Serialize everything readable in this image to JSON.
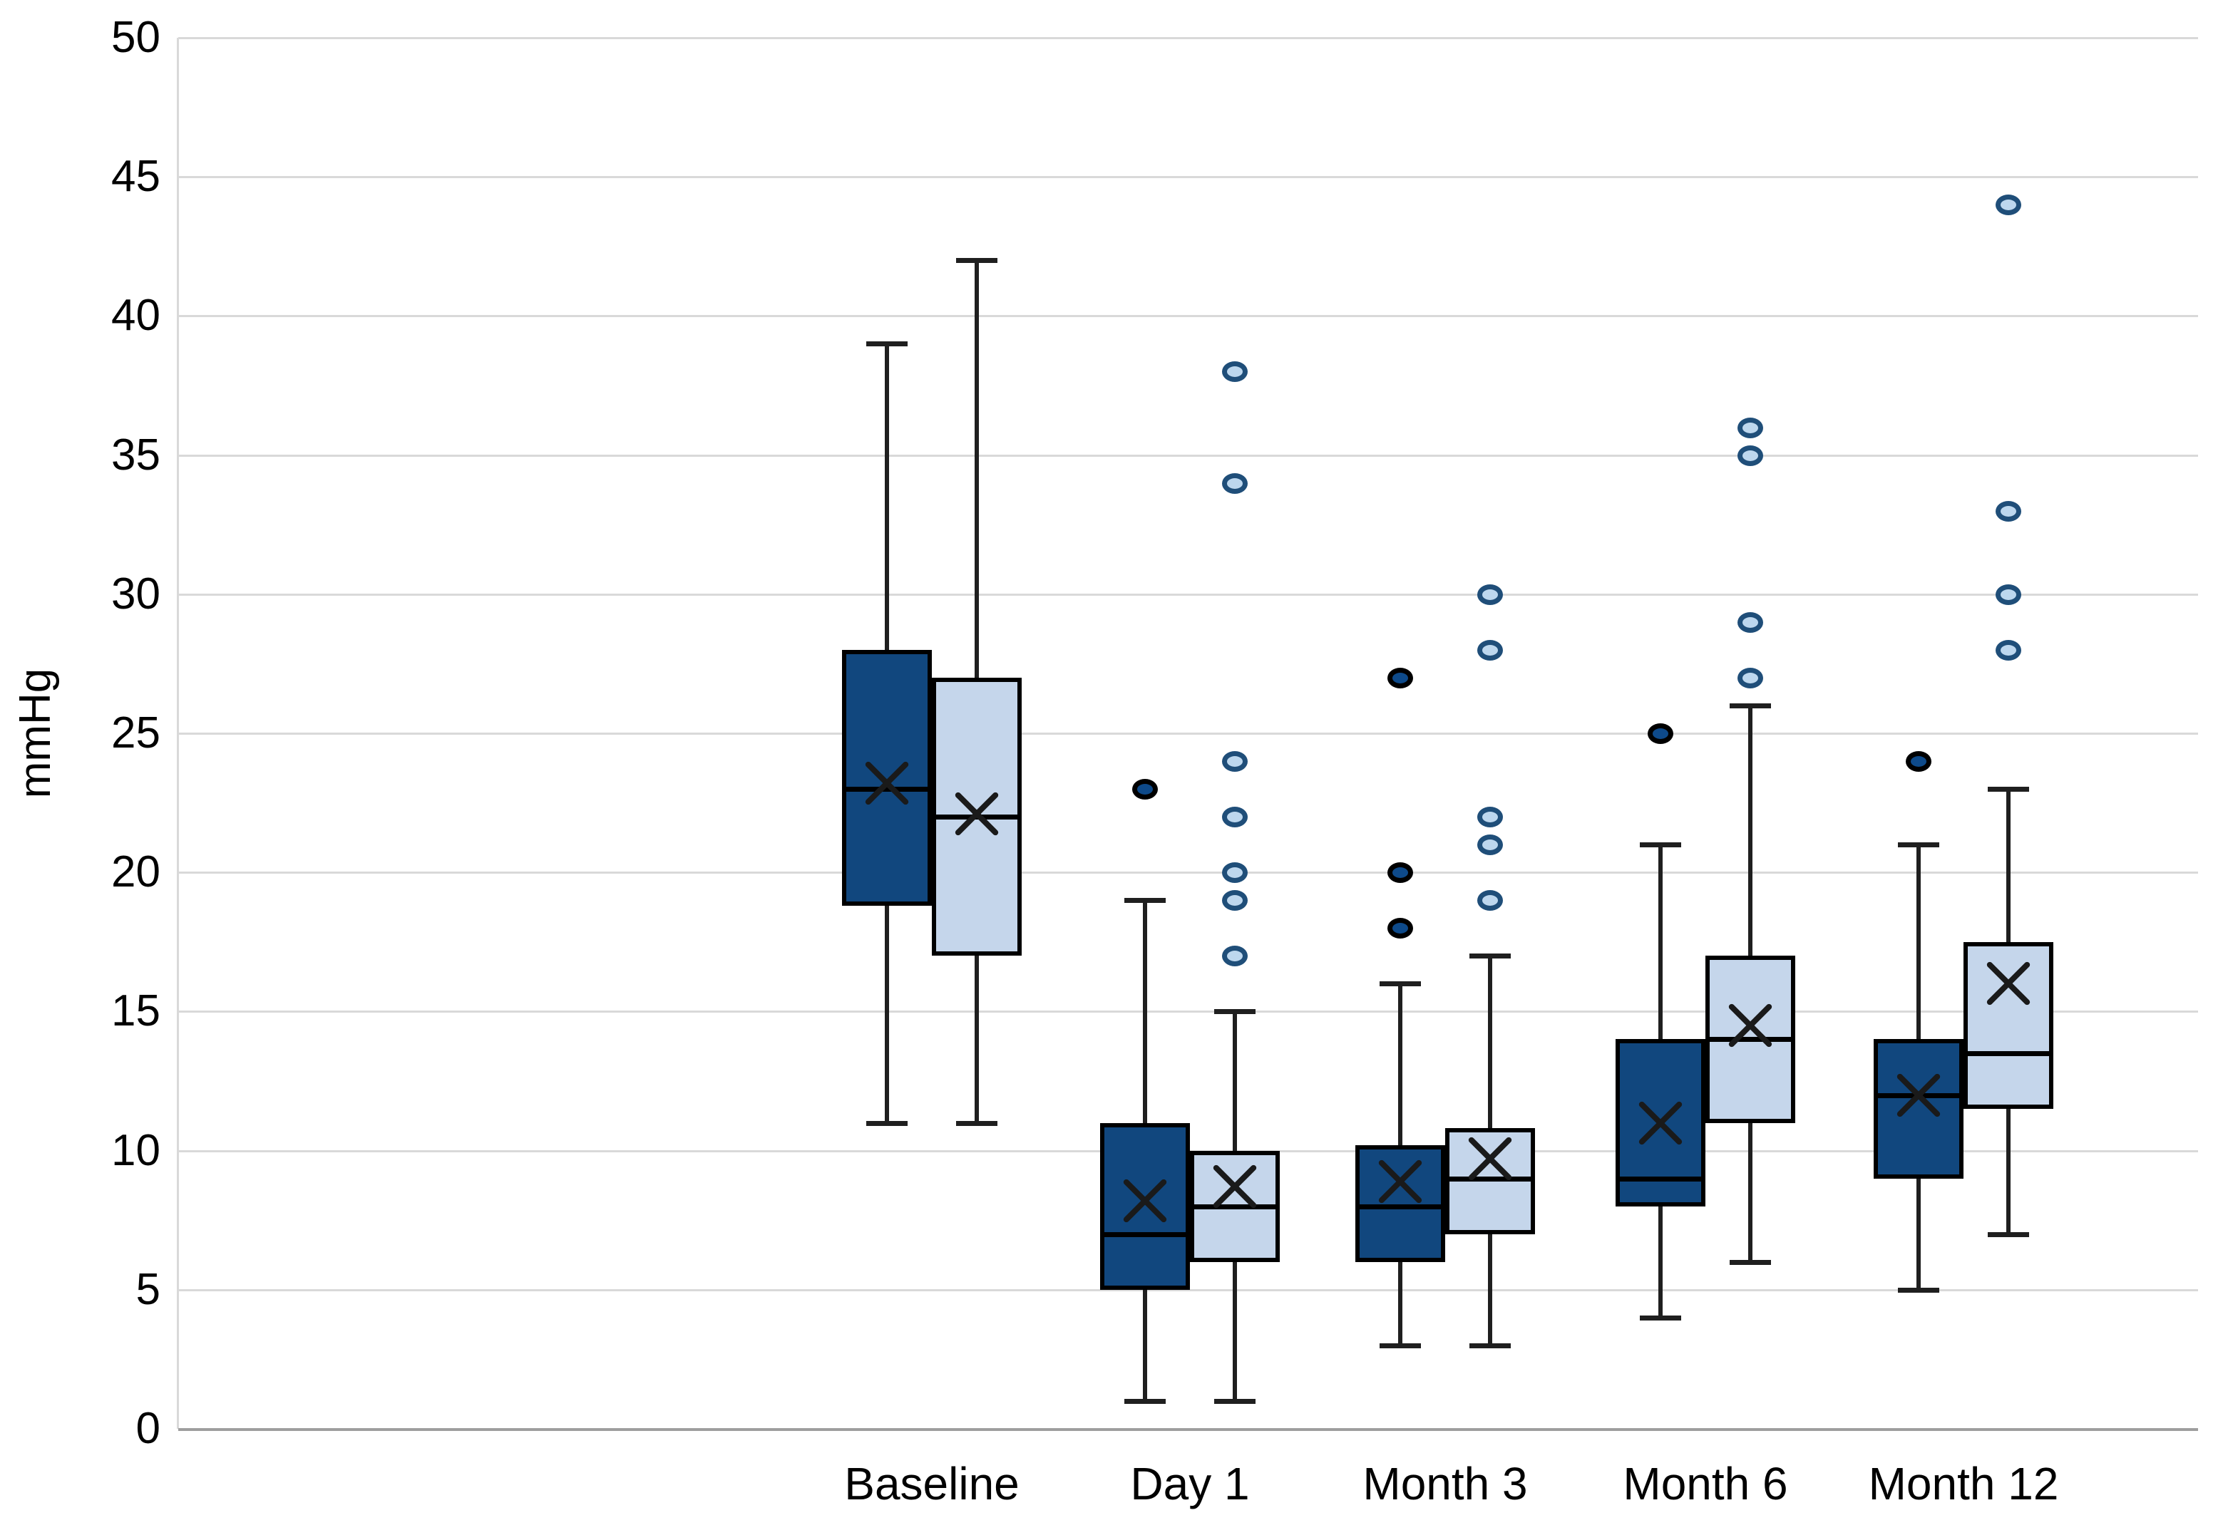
{
  "chart_data": {
    "type": "boxplot",
    "title": "",
    "xlabel": "",
    "ylabel": "mmHg",
    "categories": [
      "Baseline",
      "Day 1",
      "Month 3",
      "Month 6",
      "Month 12"
    ],
    "y_axis": {
      "label": "mmHg",
      "min": 0,
      "max": 50,
      "step": 5,
      "ticks": [
        "0",
        "5",
        "10",
        "15",
        "20",
        "25",
        "30",
        "35",
        "40",
        "45",
        "50"
      ],
      "grid": true
    },
    "legend": "none",
    "series": [
      {
        "name": "dark-blue",
        "fill": "#11477E",
        "outlier_fill": "#0E4A8A",
        "outlier_ring": "#000000",
        "boxes": [
          {
            "category": "Baseline",
            "whisker_low": 11,
            "q1": 18.8,
            "median": 23,
            "mean": 23.2,
            "q3": 28,
            "whisker_high": 39,
            "outliers": []
          },
          {
            "category": "Day 1",
            "whisker_low": 1,
            "q1": 5,
            "median": 7,
            "mean": 8.2,
            "q3": 11,
            "whisker_high": 19,
            "outliers": [
              23
            ]
          },
          {
            "category": "Month 3",
            "whisker_low": 3,
            "q1": 6,
            "median": 8,
            "mean": 8.9,
            "q3": 10.2,
            "whisker_high": 16,
            "outliers": [
              18,
              20,
              27
            ]
          },
          {
            "category": "Month 6",
            "whisker_low": 4,
            "q1": 8,
            "median": 9,
            "mean": 11,
            "q3": 14,
            "whisker_high": 21,
            "outliers": [
              25
            ]
          },
          {
            "category": "Month 12",
            "whisker_low": 5,
            "q1": 9,
            "median": 12,
            "mean": 12,
            "q3": 14,
            "whisker_high": 21,
            "outliers": [
              24
            ]
          }
        ]
      },
      {
        "name": "light-blue",
        "fill": "#C5D6EB",
        "outlier_fill": "#BDD7EE",
        "outlier_ring": "#1F4E79",
        "boxes": [
          {
            "category": "Baseline",
            "whisker_low": 11,
            "q1": 17,
            "median": 22,
            "mean": 22.1,
            "q3": 27,
            "whisker_high": 42,
            "outliers": []
          },
          {
            "category": "Day 1",
            "whisker_low": 1,
            "q1": 6,
            "median": 8,
            "mean": 8.7,
            "q3": 10,
            "whisker_high": 15,
            "outliers": [
              17,
              19,
              20,
              22,
              24,
              34,
              38
            ]
          },
          {
            "category": "Month 3",
            "whisker_low": 3,
            "q1": 7,
            "median": 9,
            "mean": 9.7,
            "q3": 10.8,
            "whisker_high": 17,
            "outliers": [
              19,
              21,
              22,
              28,
              30
            ]
          },
          {
            "category": "Month 6",
            "whisker_low": 6,
            "q1": 11,
            "median": 14,
            "mean": 14.5,
            "q3": 17,
            "whisker_high": 26,
            "outliers": [
              27,
              29,
              35,
              36
            ]
          },
          {
            "category": "Month 12",
            "whisker_low": 7,
            "q1": 11.5,
            "median": 13.5,
            "mean": 16,
            "q3": 17.5,
            "whisker_high": 23,
            "outliers": [
              28,
              30,
              33,
              44
            ]
          }
        ]
      }
    ],
    "colors": {
      "grid": "#D9D9D9",
      "zero_axis": "#9E9E9E",
      "box_border": "#000000",
      "whisker": "#1F1F1F",
      "mean_marker": "#1A1A1A",
      "text": "#000000",
      "background": "#FFFFFF"
    }
  }
}
